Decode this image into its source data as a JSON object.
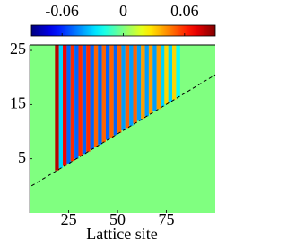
{
  "chart_data": {
    "type": "heatmap",
    "x_label": "Lattice site",
    "xlim": [
      5,
      100
    ],
    "xticks": [
      25,
      50,
      75
    ],
    "ylim": [
      -5,
      26
    ],
    "yticks": [
      25,
      15,
      5
    ],
    "clim": [
      -0.09,
      0.09
    ],
    "colorbar_ticks": [
      -0.06,
      0,
      0.06
    ],
    "colormap": "jet",
    "column_width": 2,
    "columns": {
      "x": [
        19,
        21,
        23,
        25,
        27,
        29,
        31,
        33,
        35,
        37,
        39,
        41,
        43,
        45,
        47,
        49,
        51,
        53,
        55,
        57,
        59,
        61,
        63,
        65,
        67,
        69,
        71,
        73,
        75,
        77,
        79,
        81
      ],
      "values": [
        0.08,
        -0.03,
        0.07,
        -0.05,
        0.06,
        -0.05,
        0.06,
        -0.05,
        0.06,
        -0.05,
        0.05,
        -0.05,
        0.05,
        -0.05,
        0.05,
        -0.05,
        0.05,
        -0.04,
        0.05,
        -0.04,
        0.05,
        -0.04,
        0.04,
        -0.04,
        0.04,
        -0.04,
        0.04,
        -0.03,
        0.03,
        -0.03,
        0.03,
        -0.02
      ]
    },
    "front_line": {
      "x": [
        6,
        100
      ],
      "y": [
        0,
        20.5
      ],
      "color": "#000000"
    }
  }
}
